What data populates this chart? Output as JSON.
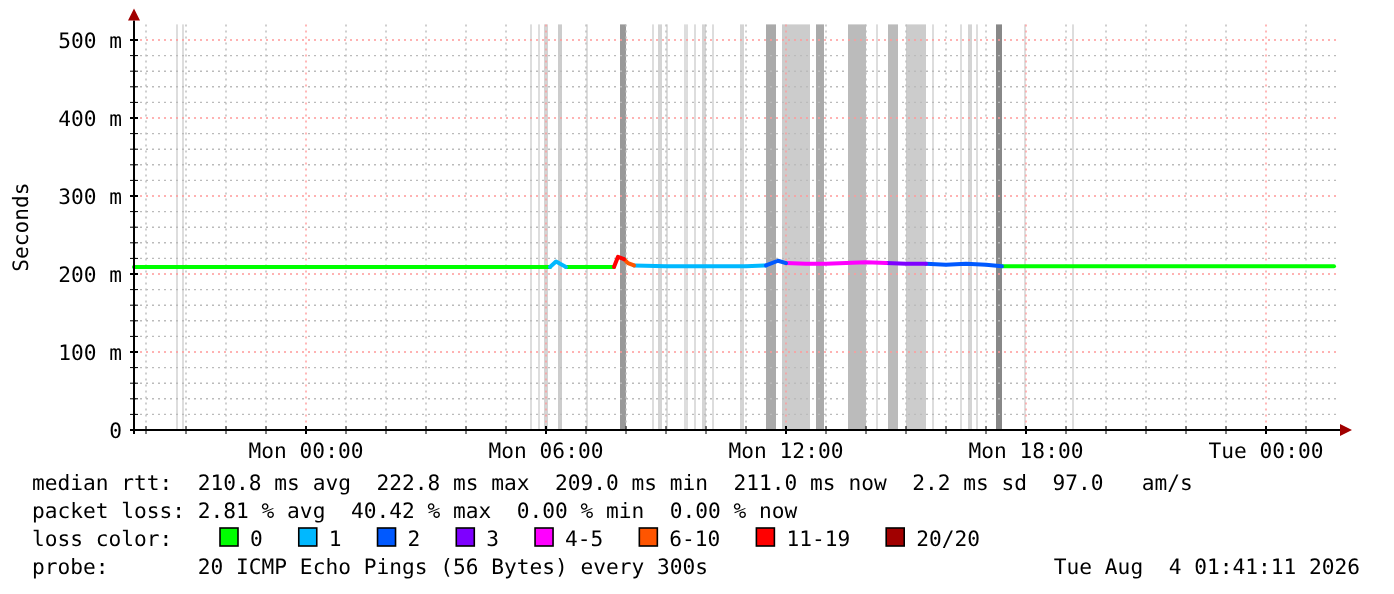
{
  "chart_data": {
    "type": "line",
    "ylabel": "Seconds",
    "legend_title": "loss color:",
    "legend": "bottom",
    "grid": true,
    "marker": "none",
    "line_style": "solid",
    "xlim": [
      "2026-08-02T19:42",
      "2026-08-04T01:45"
    ],
    "ylim": [
      0,
      520
    ],
    "xticks": [
      {
        "value": "2026-08-02T20:00",
        "label": null
      },
      {
        "value": "2026-08-02T21:00",
        "label": null
      },
      {
        "value": "2026-08-02T22:00",
        "label": null
      },
      {
        "value": "2026-08-02T23:00",
        "label": null
      },
      {
        "value": "2026-08-03T00:00",
        "label": "Mon 00:00"
      },
      {
        "value": "2026-08-03T01:00",
        "label": null
      },
      {
        "value": "2026-08-03T02:00",
        "label": null
      },
      {
        "value": "2026-08-03T03:00",
        "label": null
      },
      {
        "value": "2026-08-03T04:00",
        "label": null
      },
      {
        "value": "2026-08-03T05:00",
        "label": null
      },
      {
        "value": "2026-08-03T06:00",
        "label": "Mon 06:00"
      },
      {
        "value": "2026-08-03T07:00",
        "label": null
      },
      {
        "value": "2026-08-03T08:00",
        "label": null
      },
      {
        "value": "2026-08-03T09:00",
        "label": null
      },
      {
        "value": "2026-08-03T10:00",
        "label": null
      },
      {
        "value": "2026-08-03T11:00",
        "label": null
      },
      {
        "value": "2026-08-03T12:00",
        "label": "Mon 12:00"
      },
      {
        "value": "2026-08-03T13:00",
        "label": null
      },
      {
        "value": "2026-08-03T14:00",
        "label": null
      },
      {
        "value": "2026-08-03T15:00",
        "label": null
      },
      {
        "value": "2026-08-03T16:00",
        "label": null
      },
      {
        "value": "2026-08-03T17:00",
        "label": null
      },
      {
        "value": "2026-08-03T18:00",
        "label": "Mon 18:00"
      },
      {
        "value": "2026-08-03T19:00",
        "label": null
      },
      {
        "value": "2026-08-03T20:00",
        "label": null
      },
      {
        "value": "2026-08-03T21:00",
        "label": null
      },
      {
        "value": "2026-08-03T22:00",
        "label": null
      },
      {
        "value": "2026-08-03T23:00",
        "label": null
      },
      {
        "value": "2026-08-04T00:00",
        "label": "Tue 00:00"
      },
      {
        "value": "2026-08-04T01:00",
        "label": null
      }
    ],
    "yticks": [
      {
        "value": 0,
        "label": "0"
      },
      {
        "value": 20,
        "label": null
      },
      {
        "value": 40,
        "label": null
      },
      {
        "value": 60,
        "label": null
      },
      {
        "value": 80,
        "label": null
      },
      {
        "value": 100,
        "label": "100 m"
      },
      {
        "value": 120,
        "label": null
      },
      {
        "value": 140,
        "label": null
      },
      {
        "value": 160,
        "label": null
      },
      {
        "value": 180,
        "label": null
      },
      {
        "value": 200,
        "label": "200 m"
      },
      {
        "value": 220,
        "label": null
      },
      {
        "value": 240,
        "label": null
      },
      {
        "value": 260,
        "label": null
      },
      {
        "value": 280,
        "label": null
      },
      {
        "value": 300,
        "label": "300 m"
      },
      {
        "value": 320,
        "label": null
      },
      {
        "value": 340,
        "label": null
      },
      {
        "value": 360,
        "label": null
      },
      {
        "value": 380,
        "label": null
      },
      {
        "value": 400,
        "label": "400 m"
      },
      {
        "value": 420,
        "label": null
      },
      {
        "value": 440,
        "label": null
      },
      {
        "value": 460,
        "label": null
      },
      {
        "value": 480,
        "label": null
      },
      {
        "value": 500,
        "label": "500 m"
      }
    ],
    "series": [
      {
        "name": "0",
        "color": "#00ff00",
        "x": [
          "2026-08-02T19:42",
          "2026-08-02T22:00",
          "2026-08-03T00:00",
          "2026-08-03T02:00",
          "2026-08-03T04:00",
          "2026-08-03T06:06",
          "2026-08-03T06:18",
          "2026-08-03T06:30",
          "2026-08-03T07:00",
          "2026-08-03T07:42",
          "2026-08-03T12:00",
          "2026-08-03T17:24",
          "2026-08-03T19:00",
          "2026-08-03T21:00",
          "2026-08-03T23:00",
          "2026-08-04T01:42"
        ],
        "values": [
          209,
          209,
          209,
          209,
          209,
          209,
          null,
          209,
          209,
          209,
          null,
          210,
          210,
          210,
          210,
          210
        ]
      },
      {
        "name": "1",
        "color": "#00b8ff",
        "x": [
          "2026-08-03T08:12",
          "2026-08-03T09:00",
          "2026-08-03T10:00",
          "2026-08-03T11:00",
          "2026-08-03T11:30"
        ],
        "values": [
          211,
          210,
          210,
          210,
          211
        ]
      },
      {
        "name": "2",
        "color": "#0059ff",
        "x": [
          "2026-08-03T15:30",
          "2026-08-03T16:00",
          "2026-08-03T16:30",
          "2026-08-03T17:00",
          "2026-08-03T17:24"
        ],
        "values": [
          213,
          212,
          213,
          212,
          210
        ]
      },
      {
        "name": "3",
        "color": "#7e00ff",
        "x": [
          "2026-08-03T14:30",
          "2026-08-03T15:00",
          "2026-08-03T15:30"
        ],
        "values": [
          214,
          213,
          213
        ]
      },
      {
        "name": "4-5",
        "color": "#ff00ff",
        "x": [
          "2026-08-03T12:00",
          "2026-08-03T12:30",
          "2026-08-03T13:00",
          "2026-08-03T13:30",
          "2026-08-03T14:00",
          "2026-08-03T14:30"
        ],
        "values": [
          214,
          213,
          213,
          214,
          215,
          214
        ]
      },
      {
        "name": "6-10",
        "color": "#ff5500",
        "x": [
          "2026-08-03T07:57",
          "2026-08-03T08:03",
          "2026-08-03T08:12"
        ],
        "values": [
          219,
          214,
          211
        ]
      },
      {
        "name": "11-19",
        "color": "#ff0000",
        "x": [
          "2026-08-03T07:42",
          "2026-08-03T07:48",
          "2026-08-03T07:57"
        ],
        "values": [
          209,
          222,
          219
        ]
      },
      {
        "name": "20/20",
        "color": "#a10000"
      },
      {
        "color": "#00b8ff",
        "x": [
          "2026-08-03T06:06",
          "2026-08-03T06:15",
          "2026-08-03T06:30"
        ],
        "values": [
          209,
          216,
          209
        ]
      },
      {
        "color": "#0059ff",
        "x": [
          "2026-08-03T11:30",
          "2026-08-03T11:48",
          "2026-08-03T12:00"
        ],
        "values": [
          211,
          217,
          214
        ]
      }
    ],
    "bands": [
      {
        "axis": "x",
        "from": "2026-08-02T20:45",
        "to": "2026-08-02T20:48",
        "color": "#dddddd"
      },
      {
        "axis": "x",
        "from": "2026-08-02T20:54",
        "to": "2026-08-02T20:57",
        "color": "#dddddd"
      },
      {
        "axis": "x",
        "from": "2026-08-03T05:36",
        "to": "2026-08-03T05:39",
        "color": "#dddddd"
      },
      {
        "axis": "x",
        "from": "2026-08-03T05:48",
        "to": "2026-08-03T05:51",
        "color": "#dddddd"
      },
      {
        "axis": "x",
        "from": "2026-08-03T05:57",
        "to": "2026-08-03T06:03",
        "color": "#d4d4d4"
      },
      {
        "axis": "x",
        "from": "2026-08-03T06:18",
        "to": "2026-08-03T06:24",
        "color": "#cccccc"
      },
      {
        "axis": "x",
        "from": "2026-08-03T07:00",
        "to": "2026-08-03T07:03",
        "color": "#dddddd"
      },
      {
        "axis": "x",
        "from": "2026-08-03T07:51",
        "to": "2026-08-03T08:00",
        "color": "#999999"
      },
      {
        "axis": "x",
        "from": "2026-08-03T08:39",
        "to": "2026-08-03T08:42",
        "color": "#dddddd"
      },
      {
        "axis": "x",
        "from": "2026-08-03T08:48",
        "to": "2026-08-03T08:54",
        "color": "#d4d4d4"
      },
      {
        "axis": "x",
        "from": "2026-08-03T09:00",
        "to": "2026-08-03T09:03",
        "color": "#dddddd"
      },
      {
        "axis": "x",
        "from": "2026-08-03T09:27",
        "to": "2026-08-03T09:33",
        "color": "#dddddd"
      },
      {
        "axis": "x",
        "from": "2026-08-03T09:42",
        "to": "2026-08-03T09:45",
        "color": "#dddddd"
      },
      {
        "axis": "x",
        "from": "2026-08-03T09:54",
        "to": "2026-08-03T10:00",
        "color": "#d4d4d4"
      },
      {
        "axis": "x",
        "from": "2026-08-03T10:09",
        "to": "2026-08-03T10:12",
        "color": "#dddddd"
      },
      {
        "axis": "x",
        "from": "2026-08-03T10:51",
        "to": "2026-08-03T10:57",
        "color": "#d4d4d4"
      },
      {
        "axis": "x",
        "from": "2026-08-03T11:30",
        "to": "2026-08-03T11:45",
        "color": "#aaaaaa"
      },
      {
        "axis": "x",
        "from": "2026-08-03T11:54",
        "to": "2026-08-03T12:36",
        "color": "#cccccc"
      },
      {
        "axis": "x",
        "from": "2026-08-03T12:45",
        "to": "2026-08-03T12:57",
        "color": "#aaaaaa"
      },
      {
        "axis": "x",
        "from": "2026-08-03T13:33",
        "to": "2026-08-03T14:00",
        "color": "#bbbbbb"
      },
      {
        "axis": "x",
        "from": "2026-08-03T14:15",
        "to": "2026-08-03T14:18",
        "color": "#dddddd"
      },
      {
        "axis": "x",
        "from": "2026-08-03T14:33",
        "to": "2026-08-03T14:48",
        "color": "#bbbbbb"
      },
      {
        "axis": "x",
        "from": "2026-08-03T15:00",
        "to": "2026-08-03T15:30",
        "color": "#cccccc"
      },
      {
        "axis": "x",
        "from": "2026-08-03T15:39",
        "to": "2026-08-03T15:42",
        "color": "#dddddd"
      },
      {
        "axis": "x",
        "from": "2026-08-03T16:21",
        "to": "2026-08-03T16:24",
        "color": "#dddddd"
      },
      {
        "axis": "x",
        "from": "2026-08-03T16:33",
        "to": "2026-08-03T16:39",
        "color": "#d4d4d4"
      },
      {
        "axis": "x",
        "from": "2026-08-03T16:45",
        "to": "2026-08-03T16:48",
        "color": "#dddddd"
      },
      {
        "axis": "x",
        "from": "2026-08-03T17:15",
        "to": "2026-08-03T17:24",
        "color": "#888888"
      },
      {
        "axis": "x",
        "from": "2026-08-03T17:57",
        "to": "2026-08-03T18:00",
        "color": "#dddddd"
      },
      {
        "axis": "x",
        "from": "2026-08-03T19:09",
        "to": "2026-08-03T19:12",
        "color": "#dddddd"
      }
    ],
    "annotations": [
      "median rtt:  210.8 ms avg  222.8 ms max  209.0 ms min  211.0 ms now  2.2 ms sd  97.0   am/s",
      "packet loss: 2.81 % avg  40.42 % max  0.00 % min  0.00 % now",
      "probe:       20 ICMP Echo Pings (56 Bytes) every 300s",
      "Tue Aug  4 01:41:11 2026"
    ]
  }
}
